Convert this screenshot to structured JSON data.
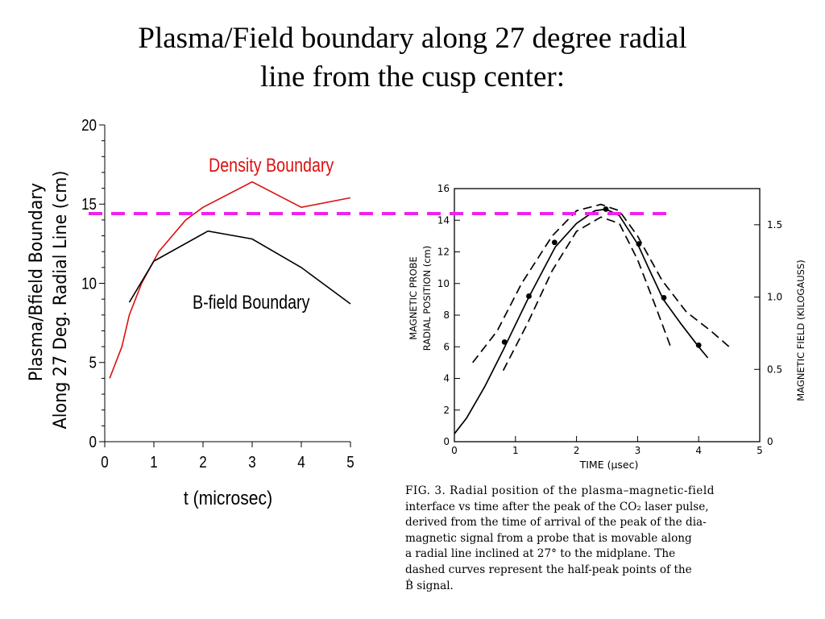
{
  "title": {
    "line1": "Plasma/Field boundary along 27 degree radial",
    "line2": "line from the cusp center:"
  },
  "chart_data": [
    {
      "type": "line",
      "title": "",
      "xlabel": "t (microsec)",
      "ylabel_line1": "Plasma/Bfield Boundary",
      "ylabel_line2": "Along 27 Deg. Radial Line (cm)",
      "xlim": [
        0,
        5
      ],
      "ylim": [
        0,
        20
      ],
      "xticks": [
        "0",
        "1",
        "2",
        "3",
        "4",
        "5"
      ],
      "yticks": [
        "0",
        "5",
        "10",
        "15",
        "20"
      ],
      "grid": false,
      "series": [
        {
          "name": "Density Boundary",
          "color": "#dd1111",
          "x": [
            0.1,
            0.35,
            0.5,
            0.75,
            1.1,
            1.65,
            2.0,
            3.0,
            4.0,
            5.0
          ],
          "y": [
            4.0,
            6.0,
            8.0,
            10.0,
            12.0,
            14.0,
            14.8,
            16.4,
            14.8,
            15.4
          ]
        },
        {
          "name": "B-field Boundary",
          "color": "#000000",
          "x": [
            0.5,
            1.0,
            2.1,
            3.0,
            4.0,
            5.0
          ],
          "y": [
            8.8,
            11.4,
            13.3,
            12.8,
            11.0,
            8.7
          ]
        }
      ],
      "reference_line": {
        "y": 14.4,
        "style": "dashed",
        "color": "#ee22ee"
      }
    },
    {
      "type": "line",
      "title": "",
      "xlabel": "TIME (μsec)",
      "ylabel_line1": "MAGNETIC PROBE",
      "ylabel_line2": "RADIAL POSITION (cm)",
      "y2label": "MAGNETIC FIELD (KILOGAUSS)",
      "xlim": [
        0,
        5
      ],
      "ylim": [
        0,
        16
      ],
      "y2lim": [
        0,
        1.75
      ],
      "xticks": [
        "0",
        "1",
        "2",
        "3",
        "4",
        "5"
      ],
      "yticks": [
        "0",
        "2",
        "4",
        "6",
        "8",
        "10",
        "12",
        "14",
        "16"
      ],
      "y2ticks": [
        "0",
        "0.5",
        "1.0",
        "1.5"
      ],
      "grid": false,
      "series": [
        {
          "role": "measured curve",
          "style": "solid",
          "x": [
            0.0,
            0.2,
            0.5,
            0.8,
            1.2,
            1.65,
            2.0,
            2.3,
            2.48,
            2.7,
            3.0,
            3.2,
            3.42,
            3.7,
            4.0,
            4.15
          ],
          "y": [
            0.5,
            1.5,
            3.5,
            5.8,
            9.0,
            12.3,
            13.8,
            14.6,
            14.7,
            14.3,
            12.5,
            10.8,
            9.0,
            7.5,
            6.0,
            5.3
          ]
        },
        {
          "role": "upper half-peak",
          "style": "dashed",
          "x": [
            0.3,
            0.7,
            1.1,
            1.6,
            2.0,
            2.4,
            2.7,
            3.0,
            3.4,
            3.8,
            4.2,
            4.5
          ],
          "y": [
            5.0,
            7.0,
            10.0,
            13.0,
            14.6,
            15.0,
            14.6,
            13.0,
            10.2,
            8.2,
            7.0,
            6.0
          ]
        },
        {
          "role": "lower half-peak",
          "style": "dashed",
          "x": [
            0.8,
            1.2,
            1.6,
            2.0,
            2.4,
            2.7,
            3.0,
            3.3,
            3.55
          ],
          "y": [
            4.5,
            7.5,
            10.8,
            13.3,
            14.2,
            13.8,
            11.5,
            8.5,
            5.9
          ]
        },
        {
          "role": "data points",
          "style": "markers",
          "x": [
            0.82,
            1.22,
            1.64,
            2.48,
            3.02,
            3.43,
            4.0
          ],
          "y": [
            6.3,
            9.2,
            12.6,
            14.7,
            12.5,
            9.1,
            6.1
          ]
        }
      ]
    }
  ],
  "annotations": {
    "density_label": "Density Boundary",
    "bfield_label": "B-field Boundary"
  },
  "caption": {
    "line1": "FIG. 3.  Radial position of the plasma–magnetic-field",
    "line2": "interface vs time after the peak of the CO₂ laser pulse,",
    "line3": "derived from the time of arrival of the peak of the dia-",
    "line4": "magnetic signal from a probe that is movable along",
    "line5": "a radial line inclined at 27° to the midplane.  The",
    "line6": "dashed curves represent the half-peak points of the",
    "line7": "Ḃ signal."
  }
}
